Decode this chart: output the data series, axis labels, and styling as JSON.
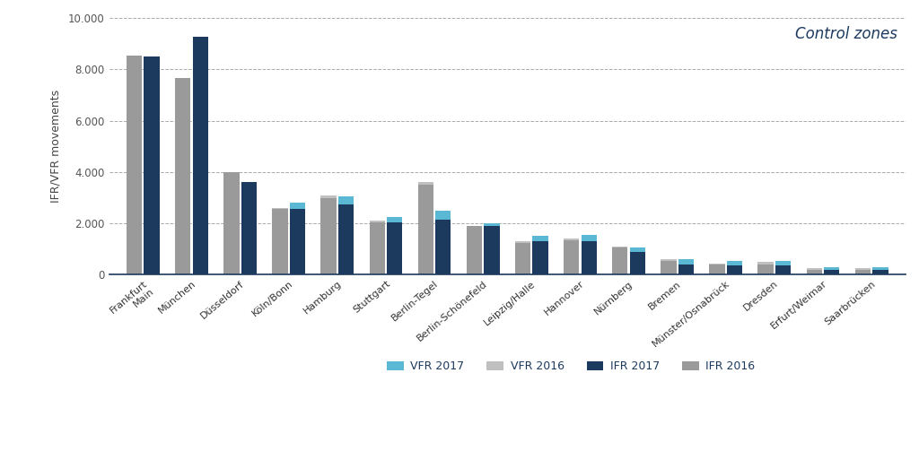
{
  "categories": [
    "Frankfurt\nMain",
    "München",
    "Düsseldorf",
    "Köln/Bonn",
    "Hamburg",
    "Stuttgart",
    "Berlin-Tegel",
    "Berlin-Schönefeld",
    "Leipzig/Halle",
    "Hannover",
    "Nürnberg",
    "Bremen",
    "Münster/Osnabrück",
    "Dresden",
    "Erfurt/Weimar",
    "Saarbrücken"
  ],
  "vfr_2017": [
    0,
    0,
    0,
    250,
    300,
    200,
    350,
    100,
    200,
    250,
    150,
    200,
    200,
    200,
    100,
    100
  ],
  "vfr_2016": [
    0,
    0,
    0,
    50,
    100,
    50,
    100,
    0,
    50,
    50,
    50,
    50,
    50,
    100,
    50,
    50
  ],
  "ifr_2017": [
    8500,
    9250,
    3600,
    2550,
    2750,
    2050,
    2150,
    1900,
    1300,
    1300,
    900,
    400,
    350,
    350,
    200,
    200
  ],
  "ifr_2016": [
    8550,
    7650,
    4000,
    2550,
    3000,
    2050,
    3500,
    1900,
    1250,
    1350,
    1050,
    550,
    400,
    400,
    200,
    200
  ],
  "color_vfr_2017": "#5bb8d4",
  "color_vfr_2016": "#c0c0c0",
  "color_ifr_2017": "#1c3a5e",
  "color_ifr_2016": "#9a9a9a",
  "ylabel": "IFR/VFR movements",
  "title": "Control zones",
  "ylim": [
    0,
    10000
  ],
  "yticks": [
    0,
    2000,
    4000,
    6000,
    8000,
    10000
  ],
  "ytick_labels": [
    "0",
    "2.000",
    "4.000",
    "6.000",
    "8.000",
    "10.000"
  ],
  "legend_labels": [
    "VFR 2017",
    "VFR 2016",
    "IFR 2017",
    "IFR 2016"
  ]
}
